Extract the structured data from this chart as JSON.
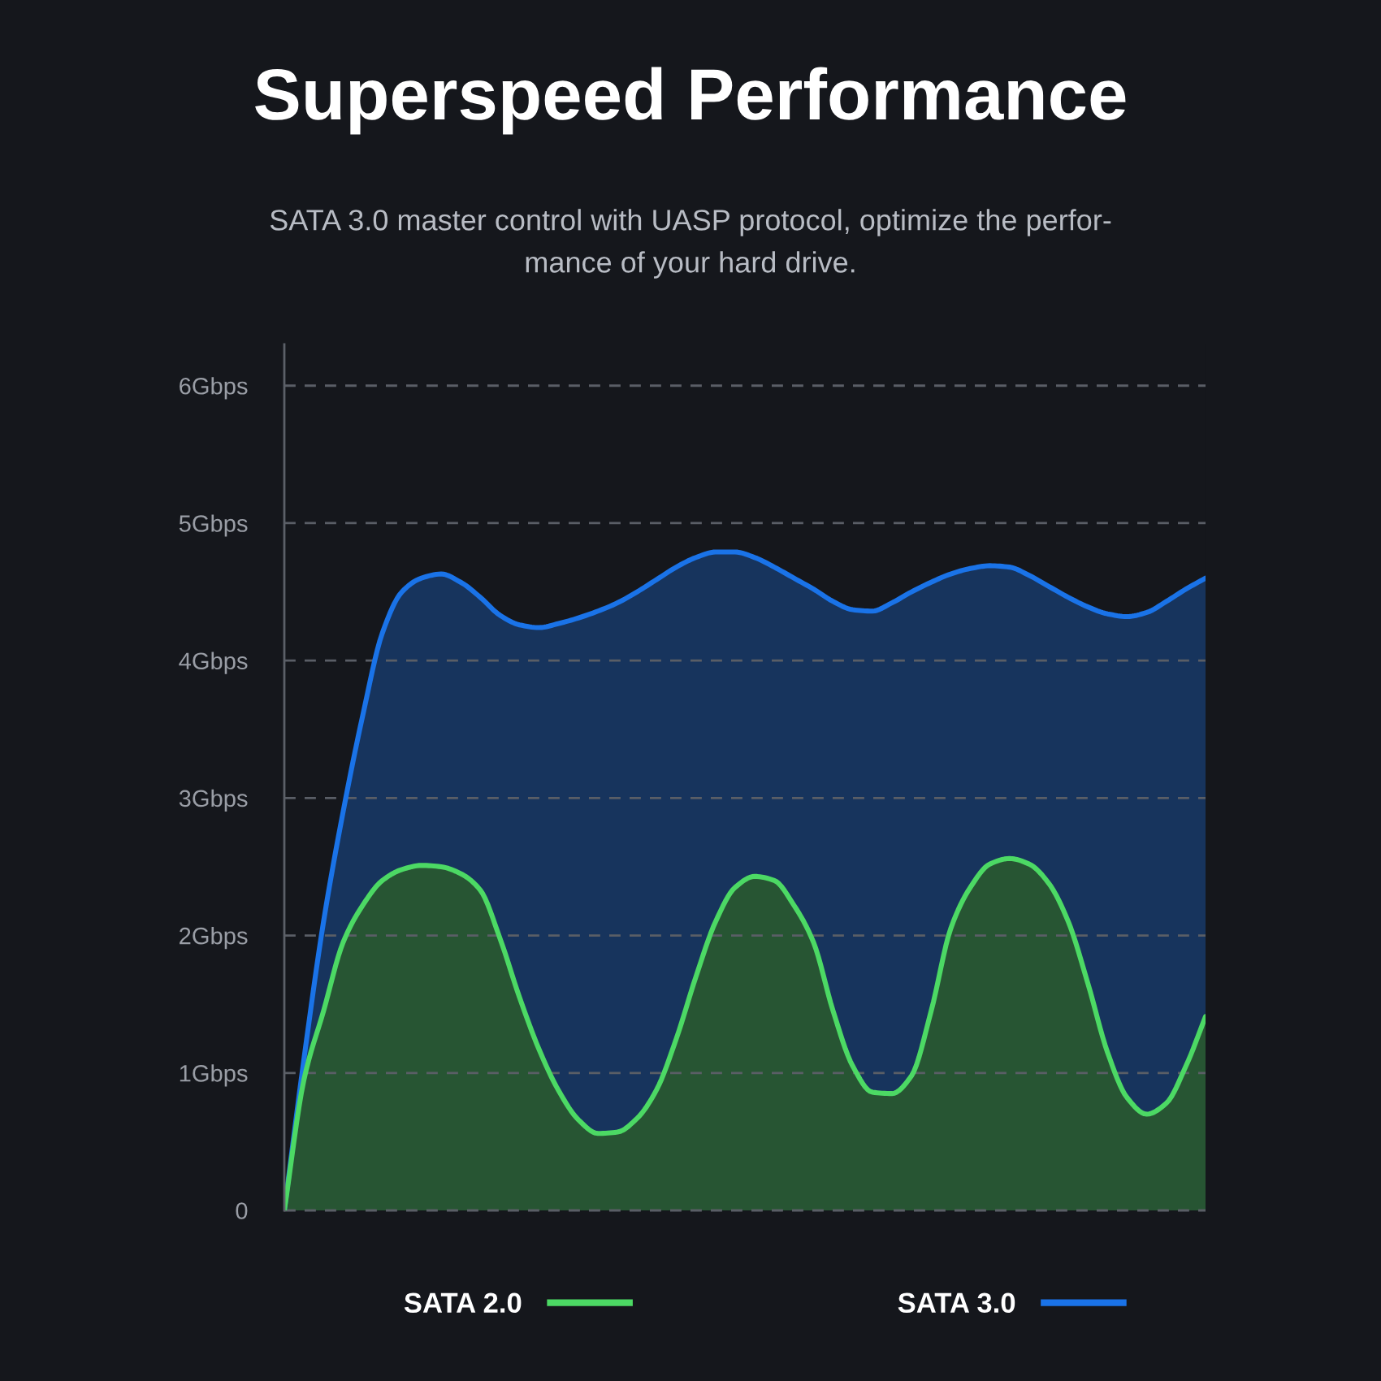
{
  "chart_data": {
    "type": "area",
    "title": "Superspeed Performance",
    "subtitle": "SATA 3.0 master control with UASP protocol, optimize the perfor-\nmance of your hard drive.",
    "categories": [
      null,
      null,
      null,
      null,
      null,
      null,
      null,
      null,
      null,
      null,
      null,
      null,
      null,
      null,
      null,
      null,
      null,
      null,
      null,
      null,
      null,
      null,
      null,
      null,
      null,
      null,
      null,
      null,
      null,
      null,
      null,
      null,
      null,
      null,
      null,
      null,
      null,
      null,
      null,
      null,
      null,
      null,
      null,
      null,
      null,
      null,
      null,
      null
    ],
    "series": [
      {
        "name": "SATA 2.0",
        "color": "#4cd964",
        "values": [
          0,
          0.95,
          1.45,
          1.95,
          2.22,
          2.4,
          2.48,
          2.51,
          2.5,
          2.45,
          2.33,
          1.98,
          1.55,
          1.17,
          0.87,
          0.66,
          0.56,
          0.57,
          0.67,
          0.88,
          1.25,
          1.7,
          2.1,
          2.35,
          2.43,
          2.4,
          2.22,
          1.95,
          1.45,
          1.05,
          0.86,
          0.85,
          0.98,
          1.45,
          2.05,
          2.35,
          2.52,
          2.56,
          2.52,
          2.38,
          2.1,
          1.65,
          1.15,
          0.82,
          0.7,
          0.78,
          1.05,
          1.41
        ]
      },
      {
        "name": "SATA 3.0",
        "color": "#1a73e8",
        "values": [
          0,
          1.1,
          2.1,
          2.9,
          3.6,
          4.2,
          4.5,
          4.6,
          4.63,
          4.57,
          4.46,
          4.33,
          4.26,
          4.24,
          4.27,
          4.31,
          4.36,
          4.42,
          4.5,
          4.59,
          4.68,
          4.75,
          4.79,
          4.79,
          4.75,
          4.68,
          4.6,
          4.52,
          4.43,
          4.37,
          4.36,
          4.42,
          4.5,
          4.57,
          4.63,
          4.67,
          4.69,
          4.68,
          4.62,
          4.54,
          4.46,
          4.39,
          4.34,
          4.32,
          4.35,
          4.43,
          4.52,
          4.6
        ]
      }
    ],
    "ylim": [
      0,
      6.3
    ],
    "yticks": [
      0,
      {
        "value": 1,
        "label": "1Gbps"
      },
      {
        "value": 2,
        "label": "2Gbps"
      },
      {
        "value": 3,
        "label": "3Gbps"
      },
      {
        "value": 4,
        "label": "4Gbps"
      },
      {
        "value": 5,
        "label": "5Gbps"
      },
      {
        "value": 6,
        "label": "6Gbps"
      }
    ],
    "grid": "y",
    "legend": "bottom",
    "line_style": "solid"
  }
}
